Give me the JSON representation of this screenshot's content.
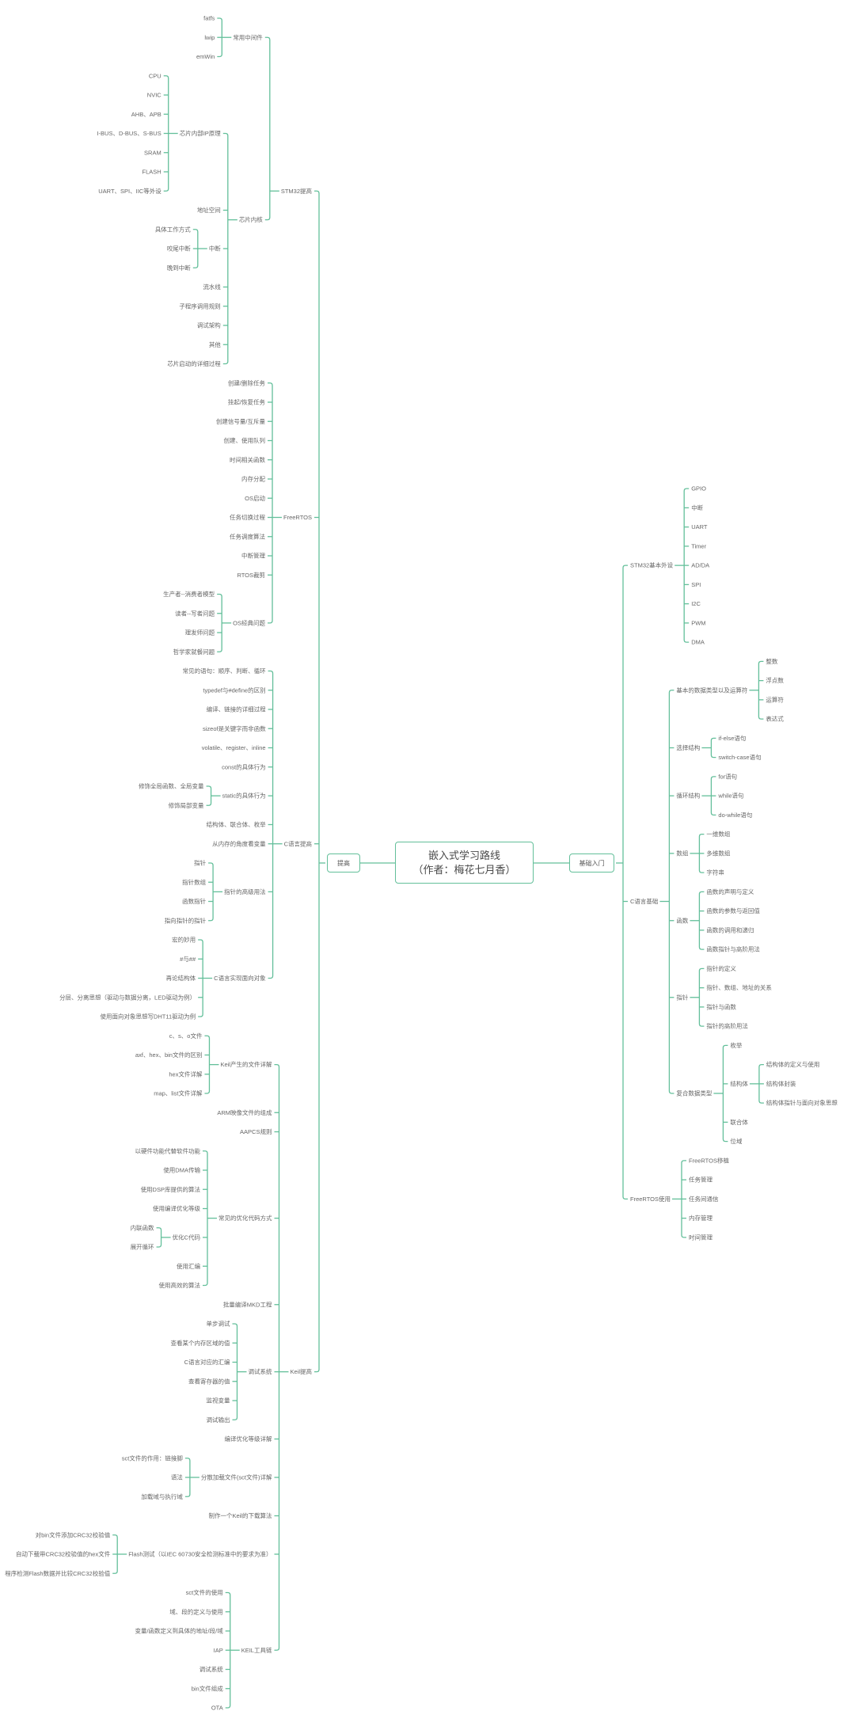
{
  "root": {
    "title_line1": "嵌入式学习路线",
    "title_line2": "（作者：梅花七月香）"
  },
  "colors": {
    "line": "#63bf9a",
    "border": "#63bf9a",
    "text": "#666666"
  },
  "mindmap": {
    "left": {
      "label": "提高",
      "children": [
        {
          "label": "STM32提高",
          "children": [
            {
              "label": "常用中间件",
              "children": [
                "fatfs",
                "lwip",
                "emWin"
              ]
            },
            {
              "label": "芯片内核",
              "children": [
                {
                  "label": "芯片内部IP原理",
                  "children": [
                    "CPU",
                    "NVIC",
                    "AHB、APB",
                    "I-BUS、D-BUS、S-BUS",
                    "SRAM",
                    "FLASH",
                    "UART、SPI、IIC等外设"
                  ]
                },
                "地址空间",
                {
                  "label": "中断",
                  "children": [
                    "具体工作方式",
                    "咬尾中断",
                    "晚到中断"
                  ]
                },
                "流水线",
                "子程序调用规则",
                "调试架构",
                "其他",
                "芯片启动的详细过程"
              ]
            }
          ]
        },
        {
          "label": "FreeRTOS",
          "children": [
            "创建/删除任务",
            "挂起/恢复任务",
            "创建信号量/互斥量",
            "创建、使用队列",
            "时间相关函数",
            "内存分配",
            "OS启动",
            "任务切换过程",
            "任务调度算法",
            "中断管理",
            "RTOS裁剪",
            {
              "label": "OS经典问题",
              "children": [
                "生产者--消费者模型",
                "读者--写者问题",
                "理发师问题",
                "哲学家就餐问题"
              ]
            }
          ]
        },
        {
          "label": "C语言提高",
          "children": [
            "常见的语句：顺序、判断、循环",
            "typedef与#define的区别",
            "编译、链接的详细过程",
            "sizeof是关键字而非函数",
            "volatile、register、inline",
            "const的具体行为",
            {
              "label": "static的具体行为",
              "children": [
                "修饰全局函数、全局变量",
                "修饰局部变量"
              ]
            },
            "结构体、联合体、枚举",
            "从内存的角度看变量",
            {
              "label": "指针的高级用法",
              "children": [
                "指针",
                "指针数组",
                "函数指针",
                "指向指针的指针"
              ]
            },
            {
              "label": "C语言实现面向对象",
              "children": [
                "宏的妙用",
                "#与##",
                "再论结构体",
                "分层、分离思想（驱动与数据分离，LED驱动为例）",
                "使用面向对象思想写DHT11驱动为例"
              ]
            }
          ]
        },
        {
          "label": "Keil提高",
          "children": [
            {
              "label": "Keil产生的文件详解",
              "children": [
                "c、s、o文件",
                "axf、hex、bin文件的区别",
                "hex文件详解",
                "map、list文件详解"
              ]
            },
            "ARM映像文件的组成",
            "AAPCS规则",
            {
              "label": "常见的优化代码方式",
              "children": [
                "以硬件功能代替软件功能",
                "使用DMA传输",
                "使用DSP库提供的算法",
                "使用编译优化等级",
                {
                  "label": "优化C代码",
                  "children": [
                    "内联函数",
                    "展开循环"
                  ]
                },
                "使用汇编",
                "使用高效的算法"
              ]
            },
            "批量编译MKD工程",
            {
              "label": "调试系统",
              "children": [
                "单步调试",
                "查看某个内存区域的值",
                "C语言对应的汇编",
                "查看寄存器的值",
                "监视变量",
                "调试输出"
              ]
            },
            "编译优化等级详解",
            {
              "label": "分散加载文件(sct文件)详解",
              "children": [
                "sct文件的作用：链接脚",
                "语法",
                "加载域与执行域"
              ]
            },
            "制作一个Keil的下载算法",
            {
              "label": "Flash测试（以IEC 60730安全检测标准中的要求为准）",
              "children": [
                "对bin文件添加CRC32校验值",
                "自动下载带CRC32校验值的hex文件",
                "程序检测Flash数据并比较CRC32校验值"
              ]
            },
            {
              "label": "KEIL工具链",
              "children": [
                "sct文件的使用",
                "域、段的定义与使用",
                "变量/函数定义到具体的地址/段/域",
                "IAP",
                "调试系统",
                "bin文件组成",
                "OTA"
              ]
            }
          ]
        }
      ]
    },
    "right": {
      "label": "基础入门",
      "children": [
        {
          "label": "STM32基本外设",
          "children": [
            "GPIO",
            "中断",
            "UART",
            "Timer",
            "AD/DA",
            "SPI",
            "I2C",
            "PWM",
            "DMA"
          ]
        },
        {
          "label": "C语言基础",
          "children": [
            {
              "label": "基本的数据类型以及运算符",
              "children": [
                "整数",
                "浮点数",
                "运算符",
                "表达式"
              ]
            },
            {
              "label": "选择结构",
              "children": [
                "if-else语句",
                "switch-case语句"
              ]
            },
            {
              "label": "循环结构",
              "children": [
                "for语句",
                "while语句",
                "do-while语句"
              ]
            },
            {
              "label": "数组",
              "children": [
                "一维数组",
                "多维数组",
                "字符串"
              ]
            },
            {
              "label": "函数",
              "children": [
                "函数的声明与定义",
                "函数的参数与返回值",
                "函数的调用和递归",
                "函数指针与高阶用法"
              ]
            },
            {
              "label": "指针",
              "children": [
                "指针的定义",
                "指针、数组、地址的关系",
                "指针与函数",
                "指针的高阶用法"
              ]
            },
            {
              "label": "复合数据类型",
              "children": [
                "枚举",
                {
                  "label": "结构体",
                  "children": [
                    "结构体的定义与使用",
                    "结构体封装",
                    "结构体指针与面向对象思想"
                  ]
                },
                "联合体",
                "位域"
              ]
            }
          ]
        },
        {
          "label": "FreeRTOS使用",
          "children": [
            "FreeRTOS移植",
            "任务管理",
            "任务间通信",
            "内存管理",
            "时间管理"
          ]
        }
      ]
    }
  }
}
